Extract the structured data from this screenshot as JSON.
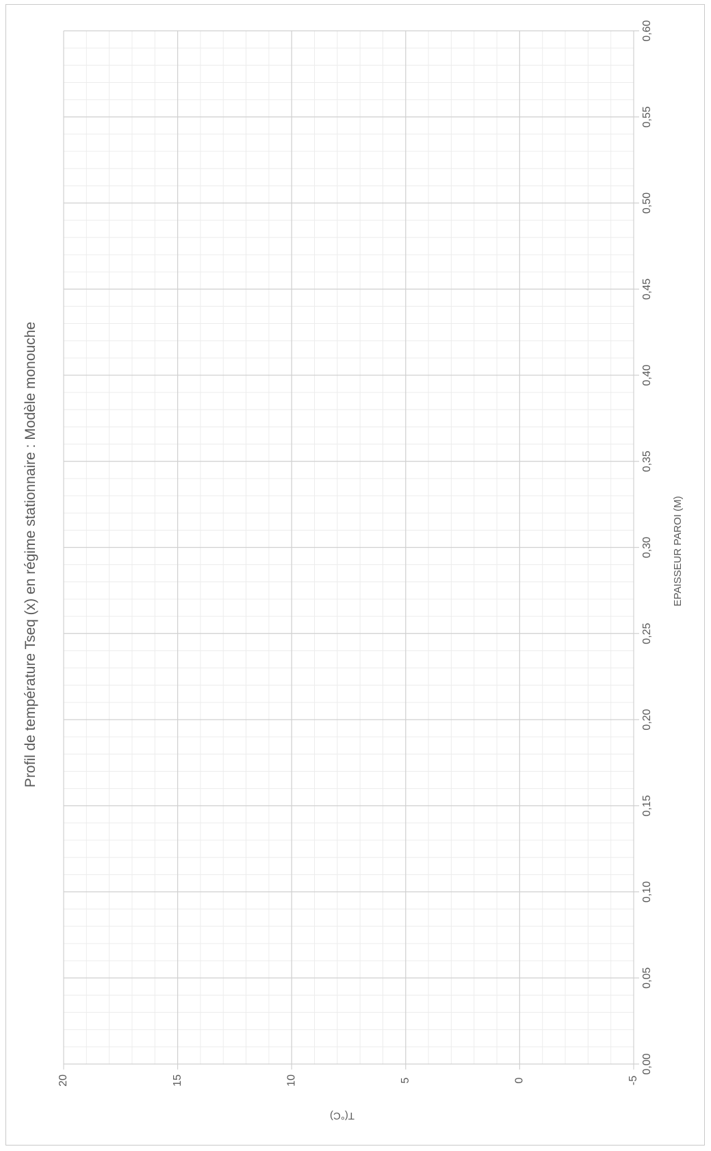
{
  "chart_data": {
    "type": "line",
    "title": "Profil de température Tseq (x) en régime stationnaire : Modèle monouche",
    "xlabel": "EPAISSEUR PAROI (M)",
    "ylabel": "T(°C)",
    "xlim": [
      0,
      0.6
    ],
    "ylim": [
      -5,
      20
    ],
    "x_ticks": [
      "0,00",
      "0,05",
      "0,10",
      "0,15",
      "0,20",
      "0,25",
      "0,30",
      "0,35",
      "0,40",
      "0,45",
      "0,50",
      "0,55",
      "0,60"
    ],
    "y_ticks": [
      "-5",
      "0",
      "5",
      "10",
      "15",
      "20"
    ],
    "x_tick_values": [
      0,
      0.05,
      0.1,
      0.15,
      0.2,
      0.25,
      0.3,
      0.35,
      0.4,
      0.45,
      0.5,
      0.55,
      0.6
    ],
    "y_tick_values": [
      -5,
      0,
      5,
      10,
      15,
      20
    ],
    "x_minor_step": 0.01,
    "y_minor_step": 1,
    "grid": true,
    "orientation": "rotated-90-clockwise",
    "series": [],
    "colors": {
      "major_grid": "#d0d0d0",
      "minor_grid": "#ececec",
      "text": "#595959",
      "frame": "#c9c9c9"
    }
  }
}
